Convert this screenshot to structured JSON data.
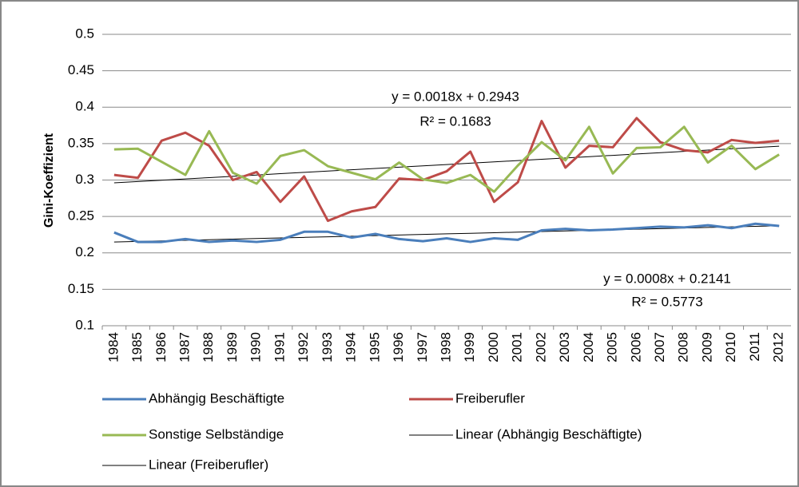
{
  "chart_data": {
    "type": "line",
    "y_label": "Gini-Koeffizient",
    "categories": [
      "1984",
      "1985",
      "1986",
      "1987",
      "1988",
      "1989",
      "1990",
      "1991",
      "1992",
      "1993",
      "1994",
      "1995",
      "1996",
      "1997",
      "1998",
      "1999",
      "2000",
      "2001",
      "2002",
      "2003",
      "2004",
      "2005",
      "2006",
      "2007",
      "2008",
      "2009",
      "2010",
      "2011",
      "2012"
    ],
    "series": [
      {
        "name": "Abhängig Beschäftigte",
        "color": "#4a7ebb",
        "width": 3,
        "values": [
          0.228,
          0.215,
          0.215,
          0.219,
          0.215,
          0.217,
          0.215,
          0.218,
          0.229,
          0.229,
          0.221,
          0.226,
          0.219,
          0.216,
          0.22,
          0.215,
          0.22,
          0.218,
          0.231,
          0.233,
          0.231,
          0.232,
          0.234,
          0.236,
          0.235,
          0.238,
          0.234,
          0.24,
          0.237
        ]
      },
      {
        "name": "Freiberufler",
        "color": "#be4b48",
        "width": 3,
        "values": [
          0.307,
          0.303,
          0.354,
          0.365,
          0.347,
          0.3,
          0.311,
          0.27,
          0.305,
          0.244,
          0.257,
          0.263,
          0.302,
          0.3,
          0.312,
          0.339,
          0.27,
          0.297,
          0.381,
          0.317,
          0.347,
          0.345,
          0.385,
          0.352,
          0.341,
          0.338,
          0.355,
          0.351,
          0.354
        ]
      },
      {
        "name": "Sonstige Selbständige",
        "color": "#98b954",
        "width": 3,
        "values": [
          0.342,
          0.343,
          0.325,
          0.307,
          0.367,
          0.31,
          0.295,
          0.333,
          0.341,
          0.319,
          0.31,
          0.301,
          0.324,
          0.301,
          0.296,
          0.307,
          0.284,
          0.32,
          0.352,
          0.327,
          0.373,
          0.309,
          0.344,
          0.345,
          0.373,
          0.324,
          0.347,
          0.315,
          0.335
        ]
      },
      {
        "name": "Linear (Abhängig Beschäftigte)",
        "color": "#000000",
        "width": 1,
        "values": [
          0.2149,
          0.2157,
          0.2165,
          0.2173,
          0.2181,
          0.2189,
          0.2197,
          0.2205,
          0.2213,
          0.2221,
          0.2229,
          0.2237,
          0.2245,
          0.2253,
          0.2261,
          0.2269,
          0.2277,
          0.2285,
          0.2293,
          0.2301,
          0.2309,
          0.2317,
          0.2325,
          0.2333,
          0.2341,
          0.2349,
          0.2357,
          0.2365,
          0.2373
        ]
      },
      {
        "name": "Linear (Freiberufler)",
        "color": "#000000",
        "width": 1,
        "values": [
          0.2961,
          0.2979,
          0.2997,
          0.3015,
          0.3033,
          0.3051,
          0.3069,
          0.3087,
          0.3105,
          0.3123,
          0.3141,
          0.3159,
          0.3177,
          0.3195,
          0.3213,
          0.3231,
          0.3249,
          0.3267,
          0.3285,
          0.3303,
          0.3321,
          0.3339,
          0.3357,
          0.3375,
          0.3393,
          0.3411,
          0.3429,
          0.3447,
          0.3465
        ]
      }
    ],
    "annotations": [
      "y = 0.0018x + 0.2943",
      "R² = 0.1683",
      "y = 0.0008x + 0.2141",
      "R² = 0.5773"
    ],
    "ylim": [
      0.1,
      0.5
    ],
    "yticks": [
      0.1,
      0.15,
      0.2,
      0.25,
      0.3,
      0.35,
      0.4,
      0.45,
      0.5
    ],
    "grid": true
  }
}
